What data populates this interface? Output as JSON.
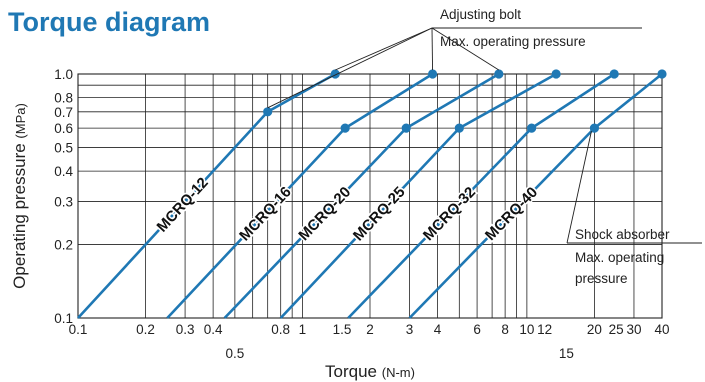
{
  "title": "Torque diagram",
  "colors": {
    "title": "#1f78b4",
    "series": "#1f78b4",
    "grid": "#222222"
  },
  "callouts": {
    "top_line1": "Adjusting bolt",
    "top_line2": "Max. operating pressure",
    "right_line1": "Shock absorber",
    "right_line2": "Max. operating",
    "right_line3": "pressure"
  },
  "chart_data": {
    "type": "line",
    "title": "Torque diagram",
    "xlabel": "Torque",
    "xunit": "(N-m)",
    "ylabel": "Operating pressure",
    "yunit": "(MPa)",
    "xscale": "log",
    "yscale": "log",
    "xlim": [
      0.1,
      40
    ],
    "ylim": [
      0.1,
      1.0
    ],
    "grid": true,
    "xticks_main": [
      "0.1",
      "0.2",
      "0.3",
      "0.4",
      "0.8",
      "1",
      "1.5",
      "2",
      "3",
      "4",
      "6",
      "8",
      "10",
      "12",
      "20",
      "25",
      "30",
      "40"
    ],
    "xticks_lower": [
      "0.5",
      "15"
    ],
    "yticks": [
      "0.1",
      "0.2",
      "0.3",
      "0.4",
      "0.5",
      "0.6",
      "0.7",
      "0.8",
      "1.0"
    ],
    "series": [
      {
        "name": "MCRQ-12",
        "points": [
          [
            0.1,
            0.1
          ],
          [
            0.7,
            0.7
          ],
          [
            1.4,
            1.0
          ]
        ],
        "markers": [
          0.7,
          1.4
        ],
        "marker_groups": [
          "bolt",
          "bolt"
        ]
      },
      {
        "name": "MCRQ-16",
        "points": [
          [
            0.25,
            0.1
          ],
          [
            1.55,
            0.6
          ],
          [
            3.8,
            1.0
          ]
        ],
        "markers": [
          1.55,
          3.8
        ],
        "marker_groups": [
          "",
          "bolt"
        ]
      },
      {
        "name": "MCRQ-20",
        "points": [
          [
            0.45,
            0.1
          ],
          [
            2.9,
            0.6
          ],
          [
            7.5,
            1.0
          ]
        ],
        "markers": [
          2.9,
          7.5
        ],
        "marker_groups": [
          "",
          "bolt"
        ]
      },
      {
        "name": "MCRQ-25",
        "points": [
          [
            0.8,
            0.1
          ],
          [
            5.0,
            0.6
          ],
          [
            13.5,
            1.0
          ]
        ],
        "markers": [
          5.0,
          13.5
        ],
        "marker_groups": [
          "",
          ""
        ]
      },
      {
        "name": "MCRQ-32",
        "points": [
          [
            1.6,
            0.1
          ],
          [
            10.5,
            0.6
          ],
          [
            24.5,
            1.0
          ]
        ],
        "markers": [
          10.5,
          24.5
        ],
        "marker_groups": [
          "",
          ""
        ]
      },
      {
        "name": "MCRQ-40",
        "points": [
          [
            3.0,
            0.1
          ],
          [
            20.0,
            0.6
          ],
          [
            40.0,
            1.0
          ]
        ],
        "markers": [
          20.0,
          40.0
        ],
        "marker_groups": [
          "shock",
          ""
        ]
      }
    ]
  }
}
